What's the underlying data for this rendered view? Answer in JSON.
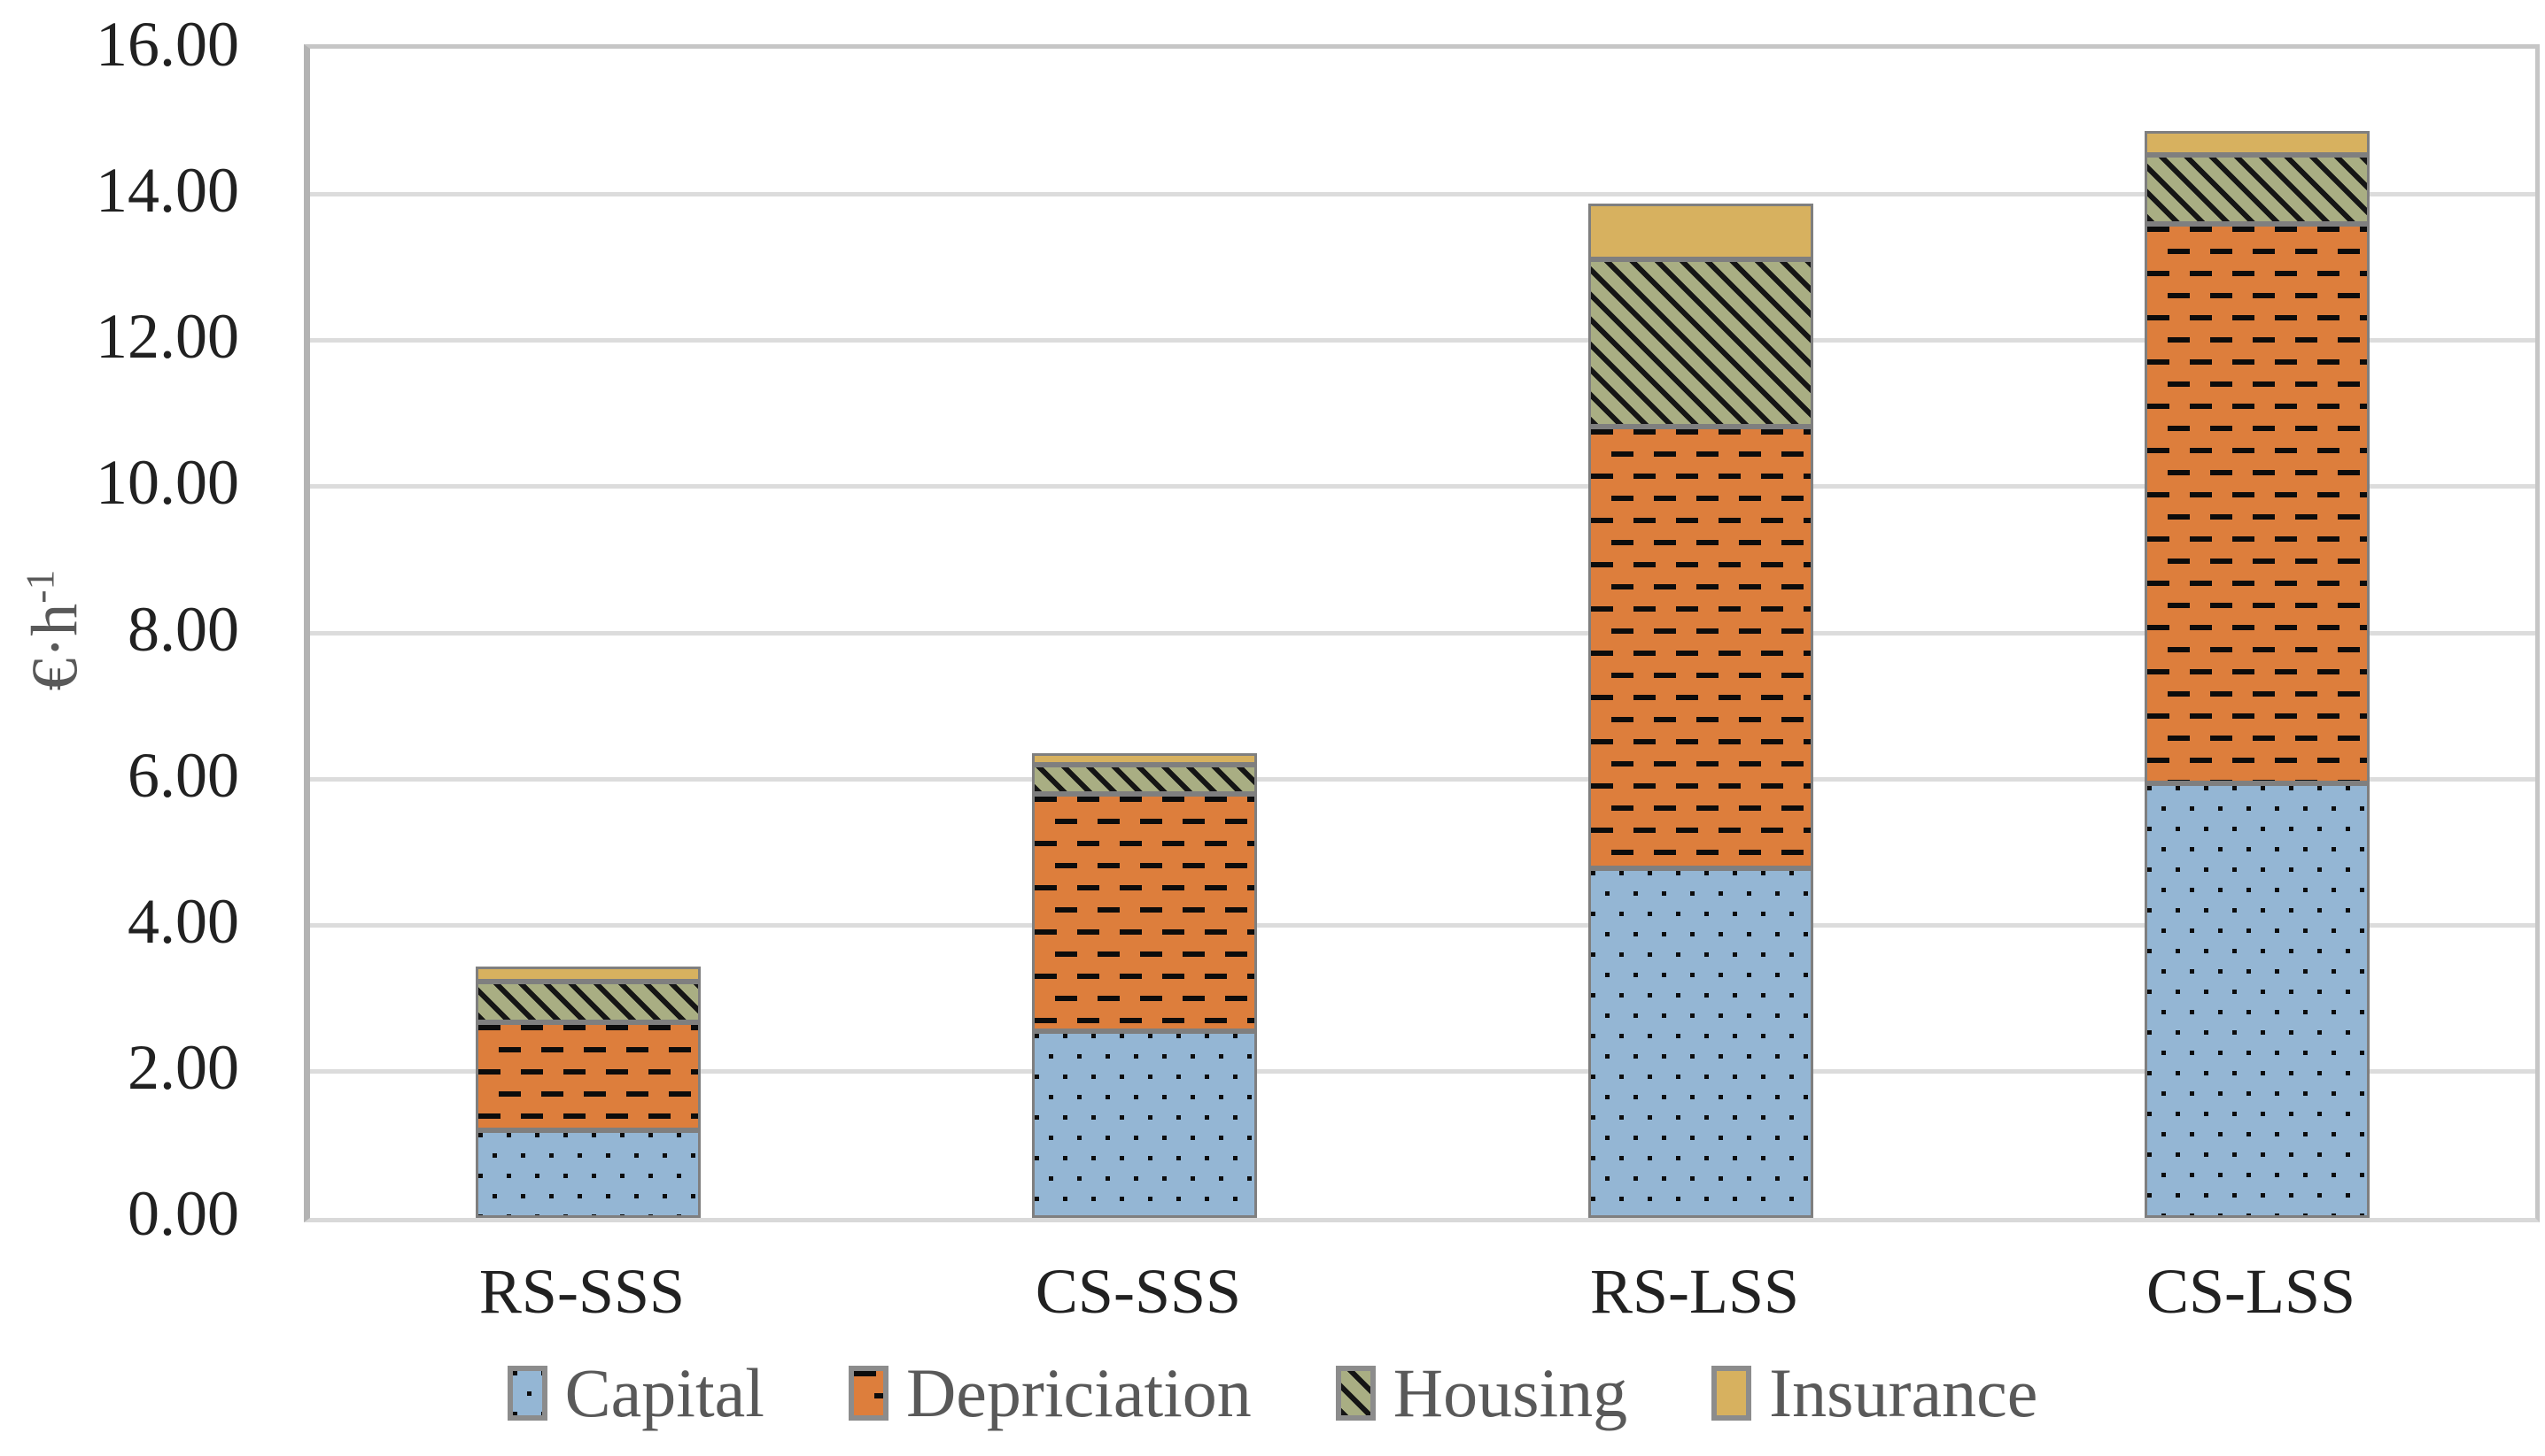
{
  "y_axis": {
    "title_base": "€·h",
    "title_superscript": "-1",
    "tick_labels": [
      "0.00",
      "2.00",
      "4.00",
      "6.00",
      "8.00",
      "10.00",
      "12.00",
      "14.00",
      "16.00"
    ]
  },
  "x_axis": {
    "categories": [
      "RS-SSS",
      "CS-SSS",
      "RS-LSS",
      "CS-LSS"
    ]
  },
  "legend": {
    "position": "bottom",
    "items": [
      {
        "label": "Capital",
        "series": "Capital",
        "swatch_color": "#94b6d4",
        "pattern": "dots"
      },
      {
        "label": "Depriciation",
        "series": "Depriciation",
        "swatch_color": "#dd7e3c",
        "pattern": "dashes"
      },
      {
        "label": "Housing",
        "series": "Housing",
        "swatch_color": "#a9ae83",
        "pattern": "diagonal"
      },
      {
        "label": "Insurance",
        "series": "Insurance",
        "swatch_color": "#d7b15f",
        "pattern": "solid"
      }
    ]
  },
  "chart_data": {
    "type": "bar",
    "stacked": true,
    "title": "",
    "xlabel": "",
    "ylabel": "€·h-1",
    "ylim": [
      0,
      16
    ],
    "ytick_step": 2,
    "grid": true,
    "legend_position": "bottom",
    "categories": [
      "RS-SSS",
      "CS-SSS",
      "RS-LSS",
      "CS-LSS"
    ],
    "series": [
      {
        "name": "Capital",
        "color": "#94b6d4",
        "pattern": "dots",
        "values": [
          1.2,
          2.55,
          4.78,
          5.95
        ]
      },
      {
        "name": "Depriciation",
        "color": "#dd7e3c",
        "pattern": "dashes",
        "values": [
          1.48,
          3.25,
          6.04,
          7.65
        ]
      },
      {
        "name": "Housing",
        "color": "#a9ae83",
        "pattern": "diagonal",
        "values": [
          0.56,
          0.4,
          2.29,
          0.95
        ]
      },
      {
        "name": "Insurance",
        "color": "#d7b15f",
        "pattern": "solid",
        "values": [
          0.2,
          0.16,
          0.76,
          0.33
        ]
      }
    ],
    "totals": [
      3.44,
      6.36,
      13.87,
      14.88
    ]
  },
  "colors": {
    "axis_line": "#b3b3b3",
    "plot_border": "#c6c6c6",
    "gridline": "#dcdcdc",
    "segment_border": "#7f7f7f",
    "tick_text": "#212121",
    "legend_text": "#595959",
    "pattern_foreground": "#0c0c0c"
  }
}
